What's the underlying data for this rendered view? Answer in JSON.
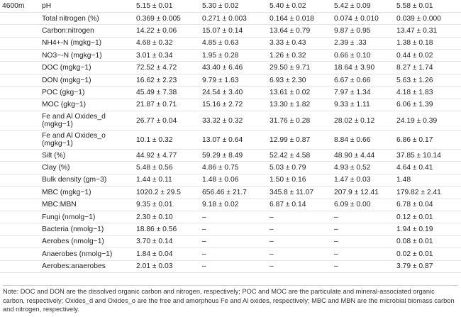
{
  "table": {
    "site": "4600m",
    "rows": [
      {
        "param": "pH",
        "values": [
          "5.15 ± 0.01",
          "5.30 ± 0.02",
          "5.40 ± 0.02",
          "5.42 ± 0.09",
          "5.58 ± 0.01"
        ]
      },
      {
        "param": "Total nitrogen (%)",
        "values": [
          "0.369 ± 0.005",
          "0.271 ± 0.003",
          "0.164 ± 0.018",
          "0.074 ± 0.010",
          "0.039 ± 0.000"
        ]
      },
      {
        "param": "Carbon:nitrogen",
        "values": [
          "14.22 ± 0.06",
          "15.07 ± 0.14",
          "13.64 ± 0.79",
          "9.87 ± 0.95",
          "13.47 ± 0.31"
        ]
      },
      {
        "param": "NH4+-N (mgkg−1)",
        "values": [
          "4.68 ± 0.32",
          "4.85 ± 0.63",
          "3.33 ± 0.43",
          "2.39 ± .33",
          "1.38 ± 0.18"
        ]
      },
      {
        "param": "NO3−-N (mgkg−1)",
        "values": [
          "3.01 ± 0.34",
          "1.95 ± 0.28",
          "1.26 ± 0.32",
          "0.66 ± 0.10",
          "0.44 ± 0.02"
        ]
      },
      {
        "param": "DOC (mgkg−1)",
        "values": [
          "72.52 ± 4.72",
          "43.40 ± 6.46",
          "29.50 ± 9.71",
          "18.64 ± 3.90",
          "8.27 ± 1.74"
        ]
      },
      {
        "param": "DON (mgkg−1)",
        "values": [
          "16.62 ± 2.23",
          "9.79 ± 1.63",
          "6.93 ± 2.30",
          "6.67 ± 0.66",
          "5.63 ± 1.26"
        ]
      },
      {
        "param": "POC (gkg−1)",
        "values": [
          "45.49 ± 7.38",
          "24.54 ± 3.40",
          "13.61 ± 0.02",
          "7.97 ± 1.34",
          "4.18 ± 1.83"
        ]
      },
      {
        "param": "MOC (gkg−1)",
        "values": [
          "21.87 ± 0.71",
          "15.16 ± 2.72",
          "13.30 ± 1.82",
          "9.33 ± 1.11",
          "6.06 ± 1.39"
        ]
      },
      {
        "param": "Fe and Al Oxides_d (mgkg−1)",
        "values": [
          "26.77 ± 0.04",
          "33.32 ± 0.32",
          "31.76 ± 0.28",
          "28.02 ± 0.12",
          "24.19 ± 0.39"
        ]
      },
      {
        "param": "Fe and Al Oxides_o (mgkg−1)",
        "values": [
          "10.1 ± 0.32",
          "13.07 ± 0.64",
          "12.99 ± 0.87",
          "8.84 ± 0.66",
          "6.86 ± 0.17"
        ]
      },
      {
        "param": "Silt (%)",
        "values": [
          "44.92 ± 4.77",
          "59.29 ± 8.49",
          "52.42 ± 4.58",
          "48.90 ± 4.44",
          "37.85 ± 10.14"
        ]
      },
      {
        "param": "Clay (%)",
        "values": [
          "5.48 ± 0.56",
          "4.86 ± 0.75",
          "5.03 ± 0.79",
          "4.93 ± 0.52",
          "4.64 ± 0.41"
        ]
      },
      {
        "param": "Bulk density (gm−3)",
        "values": [
          "1.44 ± 0.11",
          "1.48 ± 0.06",
          "1.50 ± 0.16",
          "1.47 ± 0.03",
          "1.48"
        ]
      },
      {
        "param": "MBC (mgkg−1)",
        "values": [
          "1020.2 ± 29.5",
          "656.46 ± 21.7",
          "345.8 ± 11.07",
          "207.9 ± 12.41",
          "179.82 ± 2.41"
        ]
      },
      {
        "param": "MBC:MBN",
        "values": [
          "9.35 ± 0.01",
          "9.18 ± 0.02",
          "6.87 ± 0.14",
          "6.09 ± 0.00",
          "6.78 ± 0.04"
        ]
      },
      {
        "param": "Fungi (nmolg−1)",
        "values": [
          "2.30 ± 0.10",
          "–",
          "–",
          "–",
          "0.12 ± 0.01"
        ]
      },
      {
        "param": "Bacteria (nmolg−1)",
        "values": [
          "18.86 ± 0.56",
          "–",
          "–",
          "–",
          "1.94 ± 0.19"
        ]
      },
      {
        "param": "Aerobes (nmolg−1)",
        "values": [
          "3.70 ± 0.14",
          "–",
          "–",
          "–",
          "0.08 ± 0.01"
        ]
      },
      {
        "param": "Anaerobes (nmolg−1)",
        "values": [
          "1.84 ± 0.04",
          "–",
          "–",
          "–",
          "0.02 ± 0.01"
        ]
      },
      {
        "param": "Aerobes:anaerobes",
        "values": [
          "2.01 ± 0.03",
          "–",
          "–",
          "–",
          "3.79 ± 0.87"
        ]
      }
    ]
  },
  "note": "Note: DOC and DON are the dissolved organic carbon and nitrogen, respectively; POC and MOC are the particulate and mineral-associated organic carbon, respectively; Oxides_d and Oxides_o are the free and amorphous Fe and Al oxides, respectively; MBC and MBN are the microbial biomass carbon and nitrogen, respectively."
}
